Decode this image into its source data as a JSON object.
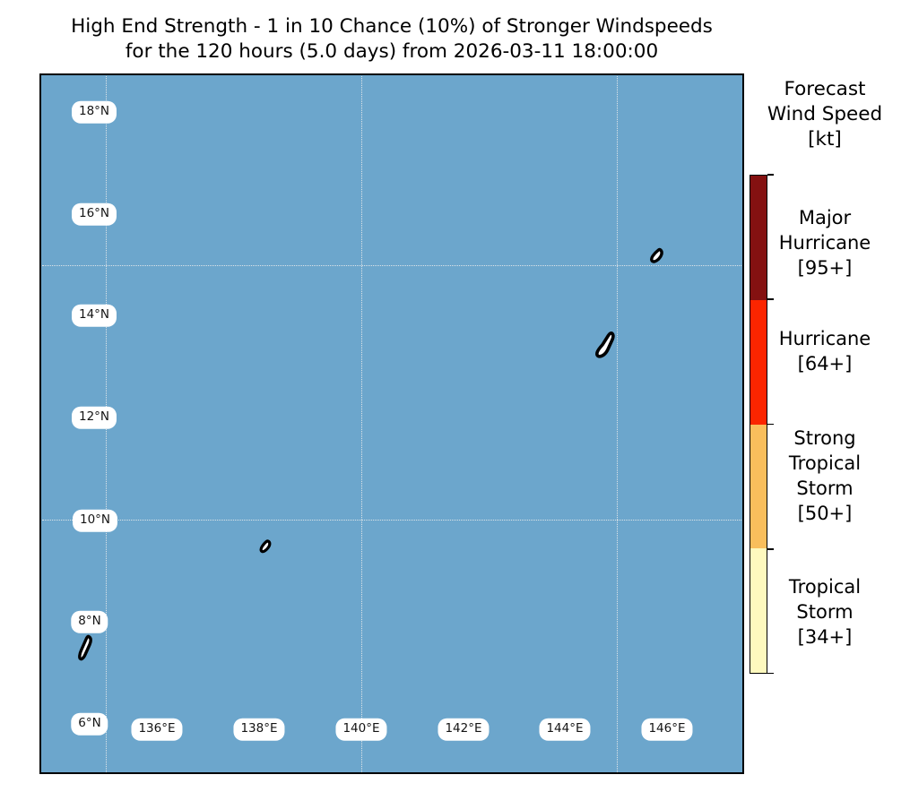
{
  "figure": {
    "title_line1": "High End Strength - 1 in 10 Chance (10%) of Stronger Windspeeds",
    "title_line2": "for the 120 hours (5.0 days) from 2026-03-11 18:00:00"
  },
  "map": {
    "ocean_color": "#6CA6CC",
    "land_color": "#FFFFFF",
    "coastline_color": "#000000",
    "lat_tick_labels": [
      "18°N",
      "16°N",
      "14°N",
      "12°N",
      "10°N",
      "8°N",
      "6°N"
    ],
    "lon_tick_labels": [
      "136°E",
      "138°E",
      "140°E",
      "142°E",
      "144°E",
      "146°E"
    ],
    "islands": [
      "palau",
      "yap",
      "guam",
      "saipan-tinian"
    ]
  },
  "legend": {
    "title_lines": [
      "Forecast",
      "Wind Speed",
      "[kt]"
    ],
    "categories": [
      {
        "name": "major-hurricane",
        "label": "Major Hurricane [95+]",
        "lines": [
          "Major",
          "Hurricane",
          "[95+]"
        ],
        "color": "#841111"
      },
      {
        "name": "hurricane",
        "label": "Hurricane [64+]",
        "lines": [
          "Hurricane",
          "[64+]"
        ],
        "color": "#FB2500"
      },
      {
        "name": "strong-tropical-storm",
        "label": "Strong Tropical Storm [50+]",
        "lines": [
          "Strong",
          "Tropical",
          "Storm",
          "[50+]"
        ],
        "color": "#F9BE5C"
      },
      {
        "name": "tropical-storm",
        "label": "Tropical Storm [34+]",
        "lines": [
          "Tropical",
          "Storm",
          "[34+]"
        ],
        "color": "#FEF9BE"
      }
    ]
  }
}
